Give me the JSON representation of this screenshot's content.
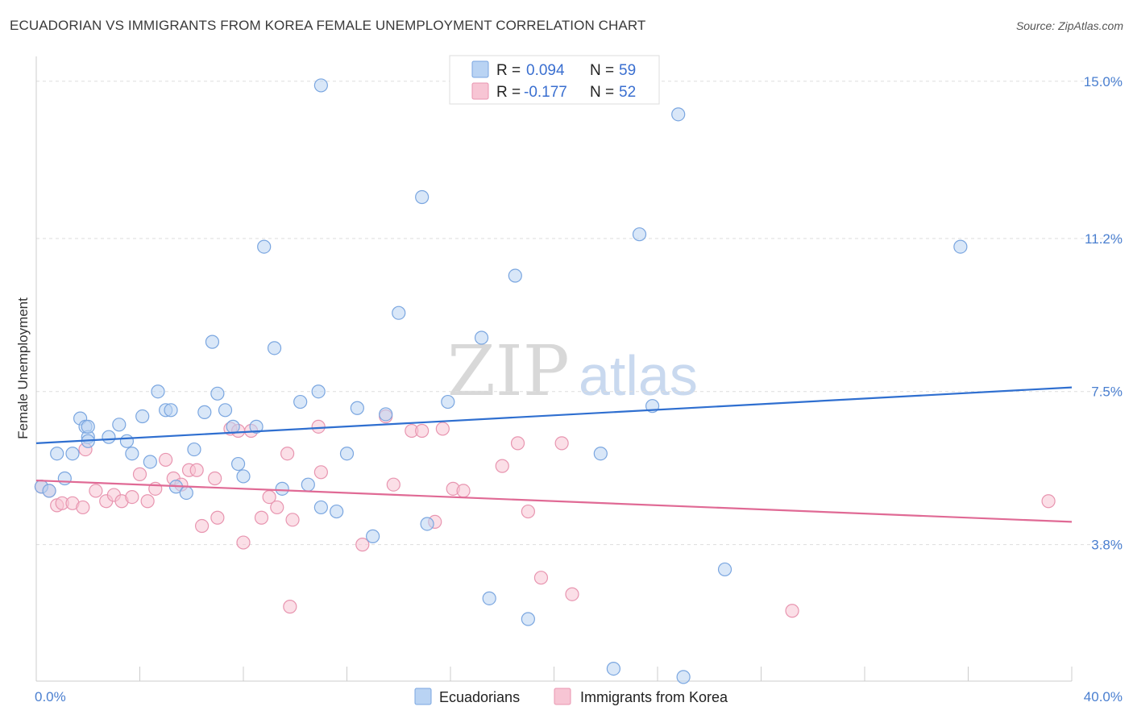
{
  "title": "ECUADORIAN VS IMMIGRANTS FROM KOREA FEMALE UNEMPLOYMENT CORRELATION CHART",
  "source": "Source: ZipAtlas.com",
  "watermark": {
    "zip": "ZIP",
    "atlas": "atlas"
  },
  "colors": {
    "blue_fill": "#b9d3f3",
    "blue_stroke": "#7aa6e0",
    "blue_line": "#2f6fd0",
    "pink_fill": "#f7c5d4",
    "pink_stroke": "#e895b0",
    "pink_line": "#e06a95",
    "grid": "#dddddd",
    "tick_text": "#4a7fd0"
  },
  "legend_top": {
    "rows": [
      {
        "r_label": "R =",
        "r_value": "0.094",
        "n_label": "N =",
        "n_value": "59",
        "series": "blue"
      },
      {
        "r_label": "R =",
        "r_value": "-0.177",
        "n_label": "N =",
        "n_value": "52",
        "series": "pink"
      }
    ]
  },
  "chart_data": {
    "type": "scatter",
    "title": "ECUADORIAN VS IMMIGRANTS FROM KOREA FEMALE UNEMPLOYMENT CORRELATION CHART",
    "xlabel": "",
    "ylabel": "Female Unemployment",
    "xlim": [
      0,
      40
    ],
    "ylim": [
      0.5,
      15.6
    ],
    "x_tick_labels": [
      {
        "value": 0,
        "label": "0.0%"
      },
      {
        "value": 40,
        "label": "40.0%"
      }
    ],
    "y_tick_labels": [
      {
        "value": 3.8,
        "label": "3.8%"
      },
      {
        "value": 7.5,
        "label": "7.5%"
      },
      {
        "value": 11.2,
        "label": "11.2%"
      },
      {
        "value": 15.0,
        "label": "15.0%"
      }
    ],
    "x_minor_ticks": [
      0,
      4,
      8,
      12,
      16,
      20,
      24,
      28,
      32,
      36,
      40
    ],
    "grid": true,
    "legend_position": "top-center",
    "series": [
      {
        "name": "Ecuadorians",
        "color": "blue",
        "trend": {
          "x": [
            0,
            40
          ],
          "y": [
            6.25,
            7.6
          ]
        },
        "points": [
          [
            0.2,
            5.2
          ],
          [
            0.5,
            5.1
          ],
          [
            0.8,
            6.0
          ],
          [
            1.1,
            5.4
          ],
          [
            1.4,
            6.0
          ],
          [
            1.7,
            6.85
          ],
          [
            1.9,
            6.65
          ],
          [
            2.0,
            6.4
          ],
          [
            2.0,
            6.65
          ],
          [
            2.0,
            6.3
          ],
          [
            2.8,
            6.4
          ],
          [
            3.2,
            6.7
          ],
          [
            3.5,
            6.3
          ],
          [
            3.7,
            6.0
          ],
          [
            4.1,
            6.9
          ],
          [
            4.4,
            5.8
          ],
          [
            4.7,
            7.5
          ],
          [
            5.0,
            7.05
          ],
          [
            5.2,
            7.05
          ],
          [
            5.4,
            5.2
          ],
          [
            5.8,
            5.05
          ],
          [
            6.1,
            6.1
          ],
          [
            6.5,
            7.0
          ],
          [
            6.8,
            8.7
          ],
          [
            7.0,
            7.45
          ],
          [
            7.3,
            7.05
          ],
          [
            7.6,
            6.65
          ],
          [
            7.8,
            5.75
          ],
          [
            8.0,
            5.45
          ],
          [
            8.5,
            6.65
          ],
          [
            8.8,
            11.0
          ],
          [
            9.2,
            8.55
          ],
          [
            9.5,
            5.15
          ],
          [
            10.2,
            7.25
          ],
          [
            10.5,
            5.25
          ],
          [
            10.9,
            7.5
          ],
          [
            11.0,
            4.7
          ],
          [
            11.6,
            4.6
          ],
          [
            12.0,
            6.0
          ],
          [
            12.4,
            7.1
          ],
          [
            13.0,
            4.0
          ],
          [
            13.5,
            6.95
          ],
          [
            14.0,
            9.4
          ],
          [
            14.9,
            12.2
          ],
          [
            15.1,
            4.3
          ],
          [
            15.9,
            7.25
          ],
          [
            17.2,
            8.8
          ],
          [
            17.5,
            2.5
          ],
          [
            18.5,
            10.3
          ],
          [
            19.0,
            2.0
          ],
          [
            11.0,
            14.9
          ],
          [
            21.8,
            6.0
          ],
          [
            22.3,
            0.8
          ],
          [
            23.3,
            11.3
          ],
          [
            23.8,
            7.15
          ],
          [
            24.8,
            14.2
          ],
          [
            25.0,
            0.6
          ],
          [
            26.6,
            3.2
          ],
          [
            35.7,
            11.0
          ]
        ]
      },
      {
        "name": "Immigrants from Korea",
        "color": "pink",
        "trend": {
          "x": [
            0,
            40
          ],
          "y": [
            5.35,
            4.35
          ]
        },
        "points": [
          [
            0.2,
            5.2
          ],
          [
            0.5,
            5.1
          ],
          [
            0.8,
            4.75
          ],
          [
            1.0,
            4.8
          ],
          [
            1.4,
            4.8
          ],
          [
            1.8,
            4.7
          ],
          [
            1.9,
            6.1
          ],
          [
            2.3,
            5.1
          ],
          [
            2.7,
            4.85
          ],
          [
            3.0,
            5.0
          ],
          [
            3.3,
            4.85
          ],
          [
            3.7,
            4.95
          ],
          [
            4.0,
            5.5
          ],
          [
            4.3,
            4.85
          ],
          [
            4.6,
            5.15
          ],
          [
            5.0,
            5.85
          ],
          [
            5.3,
            5.4
          ],
          [
            5.6,
            5.25
          ],
          [
            5.9,
            5.6
          ],
          [
            6.2,
            5.6
          ],
          [
            6.4,
            4.25
          ],
          [
            6.9,
            5.4
          ],
          [
            7.0,
            4.45
          ],
          [
            7.5,
            6.6
          ],
          [
            7.8,
            6.55
          ],
          [
            8.0,
            3.85
          ],
          [
            8.3,
            6.55
          ],
          [
            8.7,
            4.45
          ],
          [
            9.0,
            4.95
          ],
          [
            9.3,
            4.7
          ],
          [
            9.7,
            6.0
          ],
          [
            9.8,
            2.3
          ],
          [
            9.9,
            4.4
          ],
          [
            10.9,
            6.65
          ],
          [
            11.0,
            5.55
          ],
          [
            12.6,
            3.8
          ],
          [
            13.5,
            6.9
          ],
          [
            13.8,
            5.25
          ],
          [
            14.5,
            6.55
          ],
          [
            14.9,
            6.55
          ],
          [
            15.4,
            4.35
          ],
          [
            15.7,
            6.6
          ],
          [
            16.1,
            5.15
          ],
          [
            16.5,
            5.1
          ],
          [
            18.0,
            5.7
          ],
          [
            18.6,
            6.25
          ],
          [
            19.0,
            4.6
          ],
          [
            19.5,
            3.0
          ],
          [
            20.3,
            6.25
          ],
          [
            20.7,
            2.6
          ],
          [
            29.2,
            2.2
          ],
          [
            39.1,
            4.85
          ]
        ]
      }
    ]
  },
  "bottom_legend": [
    {
      "label": "Ecuadorians",
      "color": "blue"
    },
    {
      "label": "Immigrants from Korea",
      "color": "pink"
    }
  ]
}
